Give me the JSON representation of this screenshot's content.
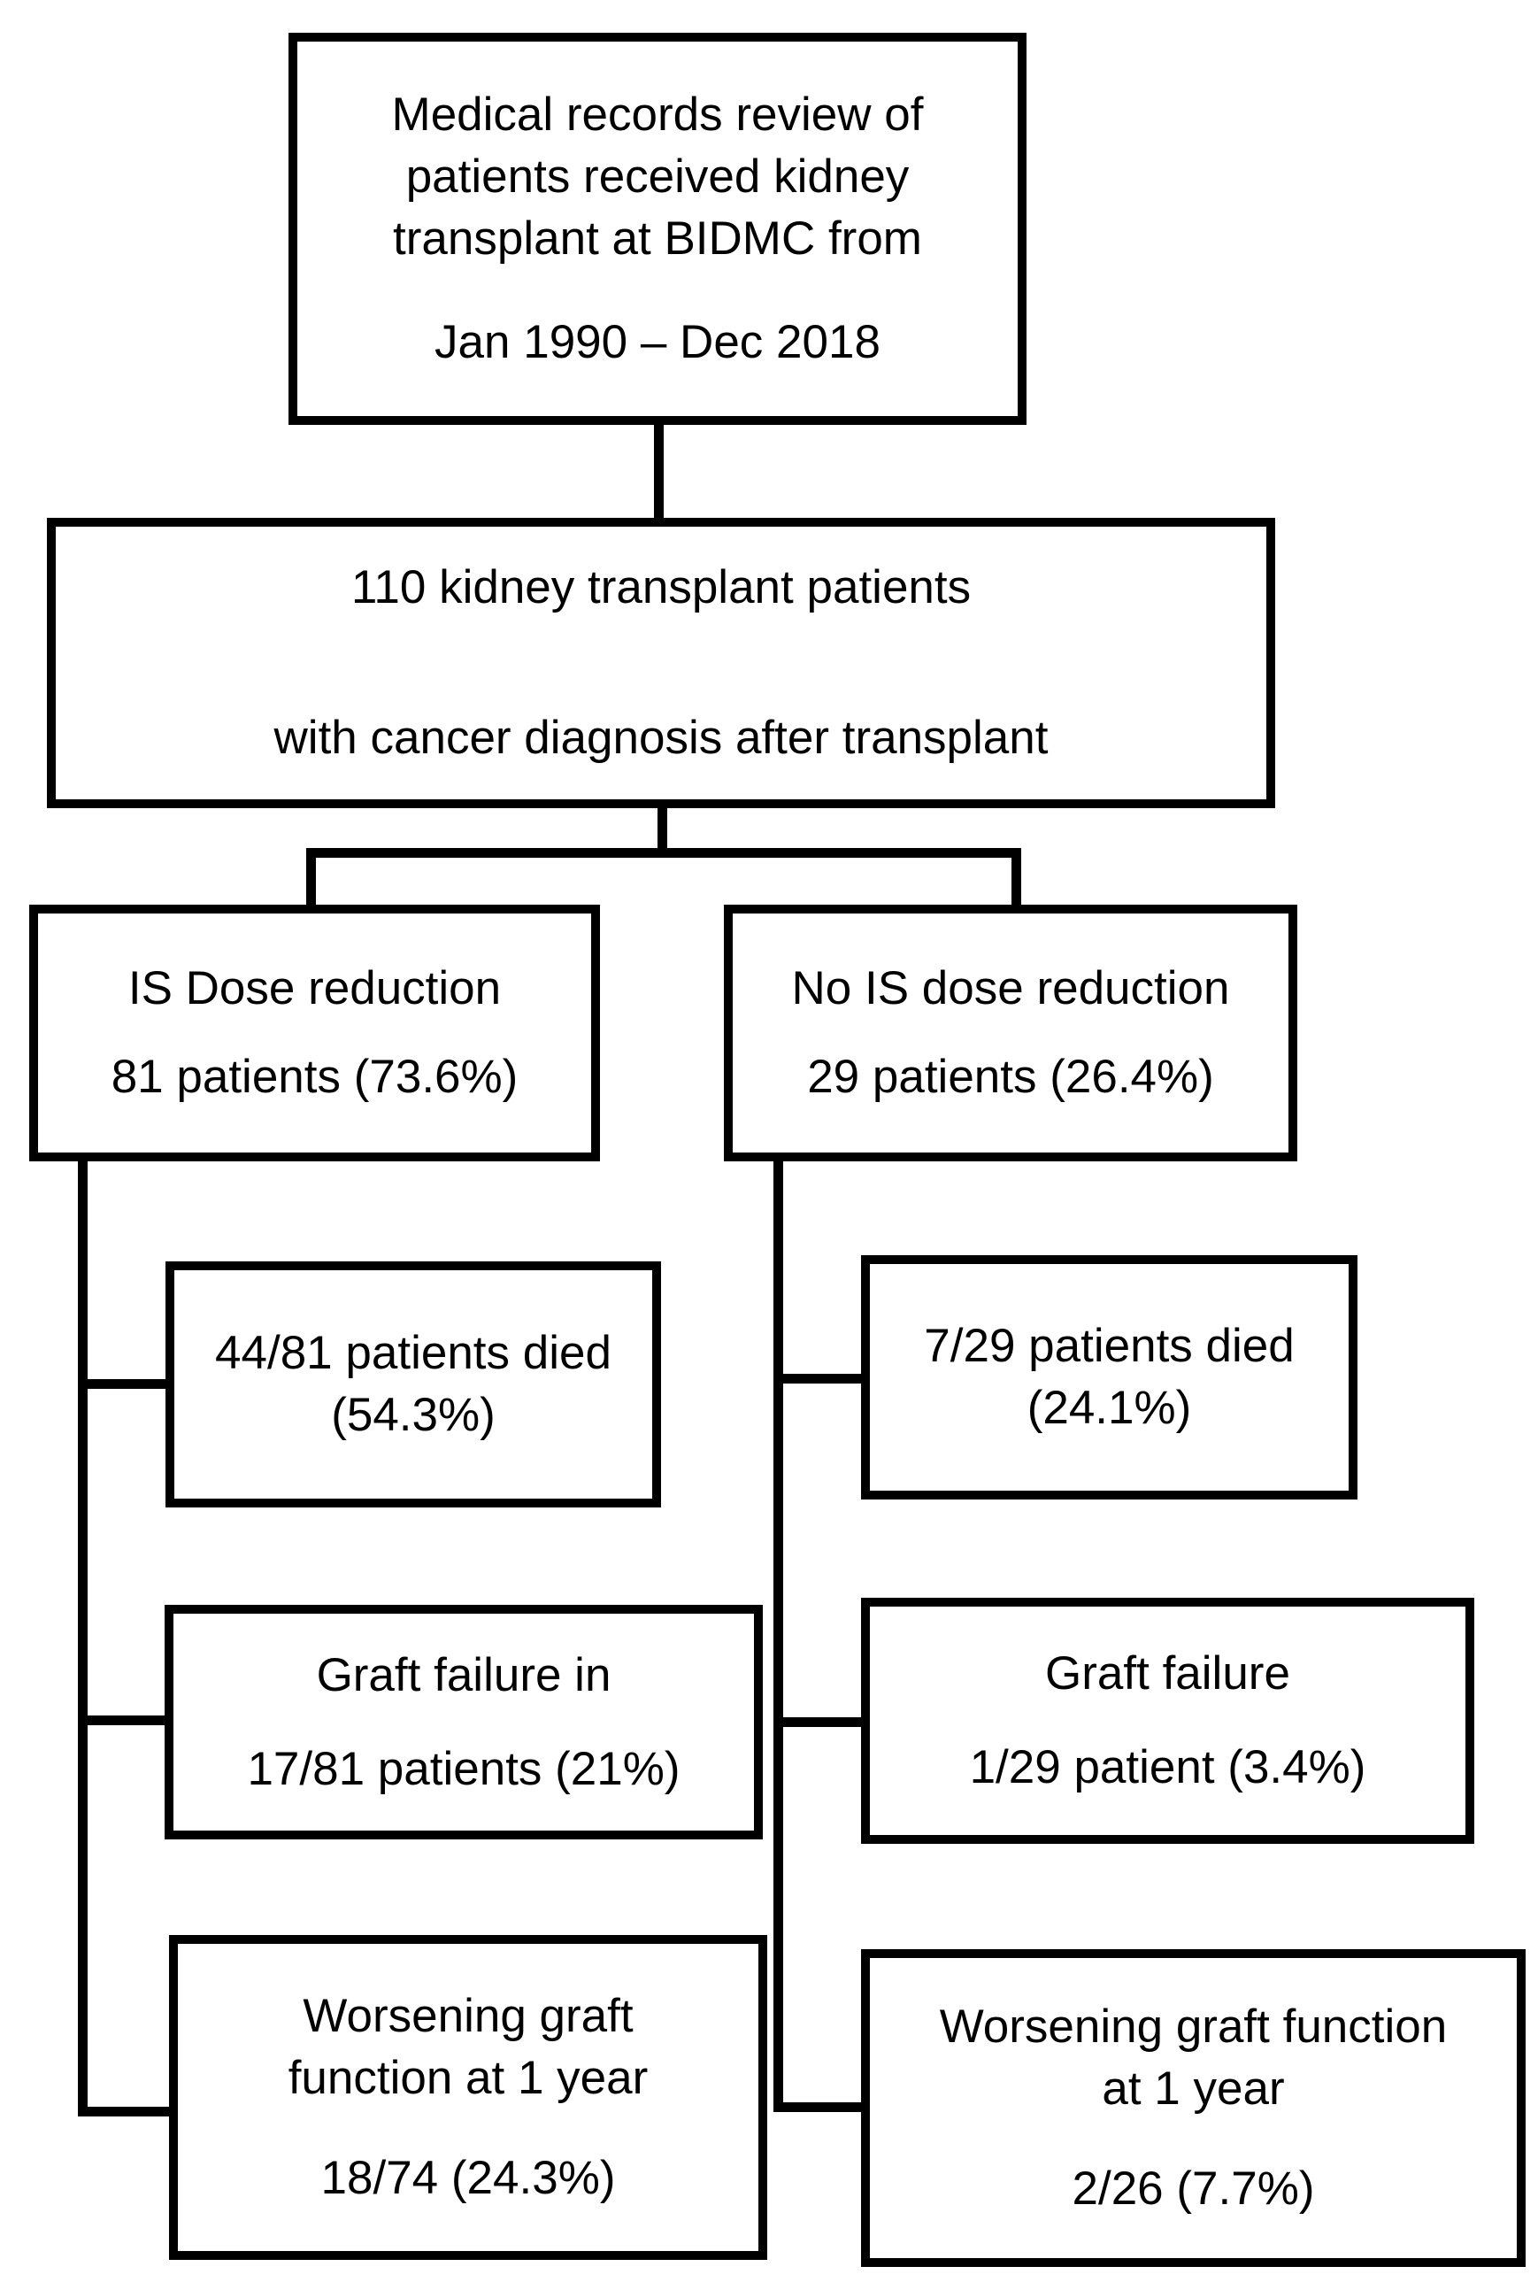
{
  "figure": {
    "background_color": "#ffffff",
    "line_color": "#000000"
  },
  "nodes": {
    "records_review": {
      "lines": [
        "Medical records review of",
        "patients received kidney",
        "transplant at BIDMC from"
      ],
      "date_range": "Jan 1990 – Dec 2018"
    },
    "cohort": {
      "line1": "110 kidney transplant patients",
      "line2": "with cancer diagnosis after transplant"
    },
    "is_dose_reduction": {
      "line1": "IS Dose reduction",
      "line2": "81 patients (73.6%)"
    },
    "no_is_dose_reduction": {
      "line1": "No IS dose reduction",
      "line2": "29 patients (26.4%)"
    },
    "is_died": {
      "line1": "44/81 patients died",
      "line2": "(54.3%)"
    },
    "no_is_died": {
      "line1": "7/29 patients died",
      "line2": "(24.1%)"
    },
    "is_graft_failure": {
      "line1": "Graft failure in",
      "line2": "17/81 patients (21%)"
    },
    "no_is_graft_failure": {
      "line1": "Graft failure",
      "line2": "1/29 patient (3.4%)"
    },
    "is_worsening": {
      "lines": [
        "Worsening graft",
        "function at 1 year"
      ],
      "stats": "18/74 (24.3%)"
    },
    "no_is_worsening": {
      "lines": [
        "Worsening graft function",
        "at 1 year"
      ],
      "stats": "2/26 (7.7%)"
    }
  }
}
